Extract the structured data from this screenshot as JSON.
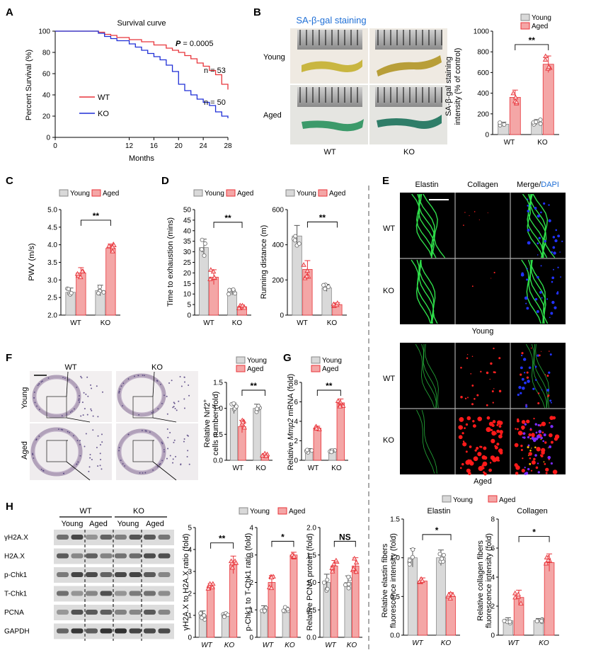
{
  "panels": {
    "A": {
      "letter": "A",
      "title": "Survival curve",
      "ylabel": "Percent Survival (%)",
      "xlabel": "Months",
      "pvalue_label": "P",
      "pvalue_text": " = 0.0005",
      "n_wt": "n = 53",
      "n_ko": "n = 50",
      "legend": [
        "WT",
        "KO"
      ],
      "xticks": [
        "0",
        "12",
        "16",
        "20",
        "24",
        "28"
      ],
      "yticks": [
        "0",
        "20",
        "40",
        "60",
        "80",
        "100"
      ]
    },
    "B": {
      "letter": "B",
      "title": "SA-β-gal staining",
      "row_labels": [
        "Young",
        "Aged"
      ],
      "col_labels": [
        "WT",
        "KO"
      ],
      "ylabel1": "SA-β-gal staining",
      "ylabel2": "intensity (% of control)",
      "sig": "**",
      "legend": [
        "Young",
        "Aged"
      ]
    },
    "C": {
      "letter": "C",
      "ylabel": "PWV (m/s)",
      "sig": "**",
      "legend": [
        "Young",
        "Aged"
      ]
    },
    "D": {
      "letter": "D",
      "ylabel1": "Time to exhaustion (mins)",
      "ylabel2": "Running distance (m)",
      "sig": "**",
      "legend": [
        "Young",
        "Aged"
      ]
    },
    "E": {
      "letter": "E",
      "stain_elastin": "Elastin",
      "stain_collagen": "Collagen",
      "stain_merge": "Merge/",
      "stain_dapi": "DAPI",
      "row_labels": [
        "WT",
        "KO"
      ],
      "group_young": "Young",
      "group_aged": "Aged",
      "chart1_title": "Elastin",
      "chart2_title": "Collagen",
      "ylabel1a": "Relative elastin fibers",
      "ylabel1b": "fluorescence intensity (fold)",
      "ylabel2a": "Relative collagen fibers",
      "ylabel2b": "fluorescence intensity (fold)",
      "sig": "*",
      "legend": [
        "Young",
        "Aged"
      ]
    },
    "F": {
      "letter": "F",
      "col_labels": [
        "WT",
        "KO"
      ],
      "row_labels": [
        "Young",
        "Aged"
      ],
      "ylabel1": "Relative Nrf2",
      "ylabel1_sup": "+",
      "ylabel2": "cells number (fold)",
      "sig": "**",
      "legend": [
        "Young",
        "Aged"
      ]
    },
    "G": {
      "letter": "G",
      "ylabel_pre": "Relative ",
      "ylabel_gene": "Mmp2",
      "ylabel_post": " mRNA (fold)",
      "sig": "**",
      "legend": [
        "Young",
        "Aged"
      ]
    },
    "H": {
      "letter": "H",
      "genotypes": [
        "WT",
        "KO"
      ],
      "ages": [
        "Young",
        "Aged",
        "Young",
        "Aged"
      ],
      "blots": [
        "γH2A.X",
        "H2A.X",
        "p-Chk1",
        "T-Chk1",
        "PCNA",
        "GAPDH"
      ],
      "ylabel1": "γH2A.X to H2A.X ratio (fold)",
      "ylabel2": "p-Chk1 to T-Chk1 ratio (fold)",
      "ylabel3": "Relative PCNA protein (fold)",
      "sig1": "**",
      "sig2": "*",
      "sig3": "NS",
      "legend": [
        "Young",
        "Aged"
      ]
    }
  },
  "colors": {
    "young": "#d9d9d9",
    "aged": "#f4a6a6",
    "aged_edge": "#e8343a",
    "wt_line": "#e8343a",
    "ko_line": "#1f2fd6"
  },
  "chart_data": [
    {
      "type": "line",
      "id": "A",
      "title": "Survival curve",
      "xlabel": "Months",
      "ylabel": "Percent Survival (%)",
      "xlim": [
        0,
        28
      ],
      "ylim": [
        0,
        100
      ],
      "series": [
        {
          "name": "WT",
          "points": [
            [
              0,
              100
            ],
            [
              3,
              100
            ],
            [
              7,
              99
            ],
            [
              8,
              97
            ],
            [
              9,
              96
            ],
            [
              10,
              94
            ],
            [
              12,
              92
            ],
            [
              14,
              90
            ],
            [
              16,
              87
            ],
            [
              18,
              84
            ],
            [
              19,
              82
            ],
            [
              20,
              80
            ],
            [
              21,
              77
            ],
            [
              22,
              74
            ],
            [
              23,
              70
            ],
            [
              24,
              67
            ],
            [
              25,
              63
            ],
            [
              26,
              59
            ],
            [
              27,
              50
            ],
            [
              28,
              45
            ]
          ]
        },
        {
          "name": "KO",
          "points": [
            [
              0,
              100
            ],
            [
              3,
              100
            ],
            [
              7,
              98
            ],
            [
              8,
              95
            ],
            [
              9,
              93
            ],
            [
              10,
              91
            ],
            [
              12,
              88
            ],
            [
              13,
              85
            ],
            [
              14,
              82
            ],
            [
              15,
              79
            ],
            [
              16,
              76
            ],
            [
              17,
              73
            ],
            [
              18,
              68
            ],
            [
              19,
              62
            ],
            [
              20,
              50
            ],
            [
              21,
              44
            ],
            [
              22,
              40
            ],
            [
              23,
              36
            ],
            [
              24,
              33
            ],
            [
              25,
              30
            ],
            [
              26,
              24
            ],
            [
              27,
              20
            ],
            [
              28,
              18
            ]
          ]
        }
      ]
    },
    {
      "type": "bar",
      "id": "B-chart",
      "categories": [
        "WT",
        "KO"
      ],
      "ylim": [
        0,
        1000
      ],
      "yticks": [
        "0",
        "200",
        "400",
        "600",
        "800",
        "1000"
      ],
      "series": [
        {
          "name": "Young",
          "values": [
            100,
            120
          ],
          "err": [
            20,
            25
          ]
        },
        {
          "name": "Aged",
          "values": [
            360,
            680
          ],
          "err": [
            70,
            80
          ]
        }
      ]
    },
    {
      "type": "bar",
      "id": "C-chart",
      "categories": [
        "WT",
        "KO"
      ],
      "ylim": [
        2.0,
        5.0
      ],
      "yticks": [
        "2.0",
        "2.5",
        "3.0",
        "3.5",
        "4.0",
        "4.5",
        "5.0"
      ],
      "series": [
        {
          "name": "Young",
          "values": [
            2.65,
            2.7
          ],
          "err": [
            0.12,
            0.15
          ]
        },
        {
          "name": "Aged",
          "values": [
            3.2,
            3.9
          ],
          "err": [
            0.15,
            0.12
          ]
        }
      ]
    },
    {
      "type": "bar",
      "id": "D-chart1",
      "categories": [
        "WT",
        "KO"
      ],
      "ylim": [
        0,
        50
      ],
      "yticks": [
        "0",
        "5",
        "10",
        "15",
        "20",
        "25",
        "30",
        "35",
        "40",
        "45",
        "50"
      ],
      "series": [
        {
          "name": "Young",
          "values": [
            32,
            11
          ],
          "err": [
            4,
            1.5
          ]
        },
        {
          "name": "Aged",
          "values": [
            18,
            4
          ],
          "err": [
            3.5,
            0.8
          ]
        }
      ]
    },
    {
      "type": "bar",
      "id": "D-chart2",
      "categories": [
        "WT",
        "KO"
      ],
      "ylim": [
        0,
        600
      ],
      "yticks": [
        "0",
        "200",
        "400",
        "600"
      ],
      "series": [
        {
          "name": "Young",
          "values": [
            450,
            155
          ],
          "err": [
            60,
            20
          ]
        },
        {
          "name": "Aged",
          "values": [
            260,
            60
          ],
          "err": [
            50,
            10
          ]
        }
      ]
    },
    {
      "type": "bar",
      "id": "F-chart",
      "categories": [
        "WT",
        "KO"
      ],
      "ylim": [
        0,
        1.5
      ],
      "yticks": [
        "0.0",
        "0.5",
        "1.0",
        "1.5"
      ],
      "series": [
        {
          "name": "Young",
          "values": [
            1.0,
            1.0
          ],
          "err": [
            0.1,
            0.08
          ]
        },
        {
          "name": "Aged",
          "values": [
            0.65,
            0.1
          ],
          "err": [
            0.12,
            0.03
          ]
        }
      ]
    },
    {
      "type": "bar",
      "id": "G-chart",
      "categories": [
        "WT",
        "KO"
      ],
      "ylim": [
        0,
        8
      ],
      "yticks": [
        "0",
        "2",
        "4",
        "6",
        "8"
      ],
      "series": [
        {
          "name": "Young",
          "values": [
            1.0,
            1.0
          ],
          "err": [
            0.2,
            0.15
          ]
        },
        {
          "name": "Aged",
          "values": [
            3.3,
            5.9
          ],
          "err": [
            0.2,
            0.4
          ]
        }
      ]
    },
    {
      "type": "bar",
      "id": "H-chart1",
      "categories": [
        "WT",
        "KO"
      ],
      "ylim": [
        0,
        5
      ],
      "yticks": [
        "0",
        "1",
        "2",
        "3",
        "4",
        "5"
      ],
      "series": [
        {
          "name": "Young",
          "values": [
            1.0,
            1.0
          ],
          "err": [
            0.2,
            0.1
          ]
        },
        {
          "name": "Aged",
          "values": [
            2.3,
            3.3
          ],
          "err": [
            0.15,
            0.4
          ]
        }
      ]
    },
    {
      "type": "bar",
      "id": "H-chart2",
      "categories": [
        "WT",
        "KO"
      ],
      "ylim": [
        0,
        4
      ],
      "yticks": [
        "0",
        "1",
        "2",
        "3",
        "4"
      ],
      "series": [
        {
          "name": "Young",
          "values": [
            1.0,
            1.0
          ],
          "err": [
            0.15,
            0.1
          ]
        },
        {
          "name": "Aged",
          "values": [
            2.0,
            3.0
          ],
          "err": [
            0.25,
            0.1
          ]
        }
      ]
    },
    {
      "type": "bar",
      "id": "H-chart3",
      "categories": [
        "WT",
        "KO"
      ],
      "ylim": [
        0,
        2.0
      ],
      "yticks": [
        "0.0",
        "0.5",
        "1.0",
        "1.5",
        "2.0"
      ],
      "series": [
        {
          "name": "Young",
          "values": [
            1.0,
            1.0
          ],
          "err": [
            0.15,
            0.12
          ]
        },
        {
          "name": "Aged",
          "values": [
            1.3,
            1.3
          ],
          "err": [
            0.1,
            0.15
          ]
        }
      ]
    },
    {
      "type": "bar",
      "id": "E-chart1",
      "categories": [
        "WT",
        "KO"
      ],
      "ylim": [
        0,
        1.5
      ],
      "yticks": [
        "0.0",
        "0.5",
        "1.0",
        "1.5"
      ],
      "series": [
        {
          "name": "Young",
          "values": [
            1.0,
            1.0
          ],
          "err": [
            0.12,
            0.1
          ]
        },
        {
          "name": "Aged",
          "values": [
            0.7,
            0.5
          ],
          "err": [
            0.04,
            0.05
          ]
        }
      ]
    },
    {
      "type": "bar",
      "id": "E-chart2",
      "categories": [
        "WT",
        "KO"
      ],
      "ylim": [
        0,
        8
      ],
      "yticks": [
        "0",
        "2",
        "4",
        "6",
        "8"
      ],
      "series": [
        {
          "name": "Young",
          "values": [
            1.0,
            1.0
          ],
          "err": [
            0.2,
            0.15
          ]
        },
        {
          "name": "Aged",
          "values": [
            2.6,
            5.0
          ],
          "err": [
            0.5,
            0.6
          ]
        }
      ]
    }
  ]
}
